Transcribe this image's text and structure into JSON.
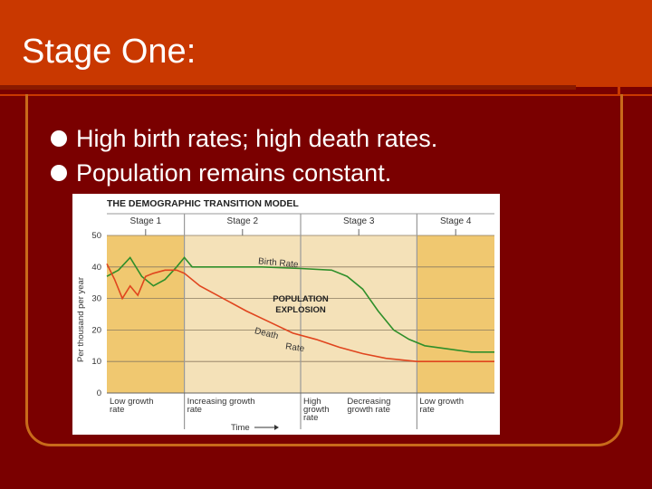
{
  "slide": {
    "title": "Stage One:",
    "bullets": [
      "High birth rates; high death rates.",
      "Population remains constant."
    ]
  },
  "chart_data": {
    "type": "line",
    "title": "THE DEMOGRAPHIC TRANSITION MODEL",
    "ylabel": "Per thousand per year",
    "xlabel": "Time",
    "ylim": [
      0,
      50
    ],
    "yticks": [
      0,
      10,
      20,
      30,
      40,
      50
    ],
    "grid": true,
    "shade_colors": {
      "light": "#f4e1b8",
      "dark": "#f0c870",
      "birth": "#2f8f2a",
      "death": "#e0451e"
    },
    "stages": [
      {
        "name": "Stage 1",
        "range": [
          0,
          1
        ],
        "bottom_label": [
          "Low growth",
          "rate"
        ]
      },
      {
        "name": "Stage 2",
        "range": [
          1,
          2.5
        ],
        "bottom_label": [
          "Increasing growth",
          "rate"
        ]
      },
      {
        "name": "Stage 3",
        "range": [
          2.5,
          4
        ],
        "bottom_label": [
          "High",
          "growth",
          "rate"
        ],
        "bottom_label_right": [
          "Decreasing",
          "growth rate"
        ]
      },
      {
        "name": "Stage 4",
        "range": [
          4,
          5
        ],
        "bottom_label": [
          "Low growth",
          "rate"
        ]
      }
    ],
    "annotation": [
      "POPULATION",
      "EXPLOSION"
    ],
    "series": [
      {
        "name": "Birth Rate",
        "x": [
          0,
          0.15,
          0.3,
          0.45,
          0.6,
          0.75,
          0.9,
          1.0,
          1.1,
          1.2,
          1.5,
          2.0,
          2.5,
          2.9,
          3.1,
          3.3,
          3.5,
          3.7,
          3.9,
          4.1,
          4.4,
          4.7,
          5.0
        ],
        "values": [
          37,
          39,
          43,
          37,
          34,
          36,
          40,
          43,
          40,
          40,
          40,
          40,
          39.5,
          39,
          37,
          33,
          26,
          20,
          17,
          15,
          14,
          13,
          13
        ]
      },
      {
        "name": "Death Rate",
        "x": [
          0,
          0.1,
          0.2,
          0.3,
          0.4,
          0.5,
          0.6,
          0.75,
          0.9,
          1.0,
          1.2,
          1.5,
          1.8,
          2.1,
          2.4,
          2.7,
          3.0,
          3.3,
          3.6,
          4.0,
          4.5,
          5.0
        ],
        "values": [
          41,
          36,
          30,
          34,
          31,
          37,
          38,
          39,
          39,
          38,
          34,
          30,
          26,
          22.5,
          19,
          17,
          14.5,
          12.5,
          11,
          10,
          10,
          10
        ]
      }
    ]
  }
}
